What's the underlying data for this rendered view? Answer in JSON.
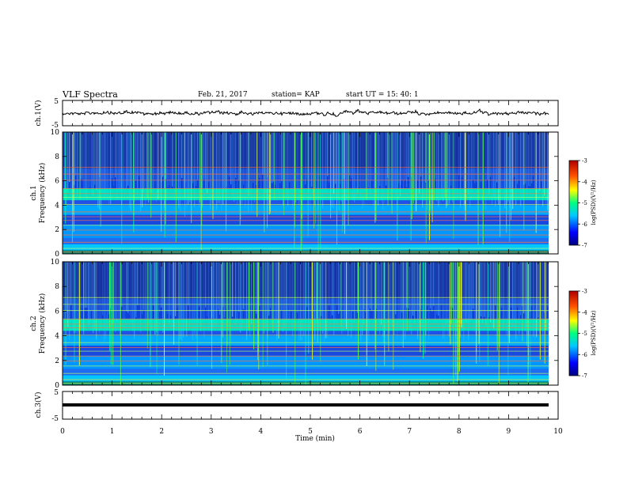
{
  "header": {
    "title": "VLF Spectra",
    "date": "Feb. 21, 2017",
    "station": "station= KAP",
    "start_ut": "start  UT =   15: 40: 1"
  },
  "chart_data": [
    {
      "type": "line",
      "ylabel": "ch.1(V)",
      "ylim": [
        -5,
        5
      ],
      "yticks": [
        "5",
        "-5"
      ],
      "xlim": [
        0,
        10
      ],
      "x_extent_min": 9.8,
      "description_level": "noisy waveform around 0 V, excursions up to about +2 V and down to about -2 V"
    },
    {
      "type": "heatmap",
      "ylabel_line1": "ch.1",
      "ylabel_line2": "Frequency (kHz)",
      "ylim": [
        0,
        10
      ],
      "yticks": [
        "0",
        "2",
        "4",
        "6",
        "8",
        "10"
      ],
      "xlim": [
        0,
        10
      ],
      "colorbar": {
        "label": "log(PSD)(V²/Hz)",
        "range": [
          -7,
          -3
        ],
        "ticks": [
          "-3",
          "-4",
          "-5",
          "-6",
          "-7"
        ]
      }
    },
    {
      "type": "heatmap",
      "ylabel_line1": "ch.2",
      "ylabel_line2": "Frequency (kHz)",
      "ylim": [
        0,
        10
      ],
      "yticks": [
        "0",
        "2",
        "4",
        "6",
        "8",
        "10"
      ],
      "xlim": [
        0,
        10
      ],
      "colorbar": {
        "label": "log(PSD)(V²/Hz)",
        "range": [
          -7,
          -3
        ],
        "ticks": [
          "-3",
          "-4",
          "-5",
          "-6",
          "-7"
        ]
      }
    },
    {
      "type": "line",
      "ylabel": "ch.3(V)",
      "ylim": [
        -5,
        5
      ],
      "yticks": [
        "5",
        "-5"
      ],
      "xlim": [
        0,
        10
      ],
      "constant_value": 0,
      "xlabel": "Time (min)",
      "xticks": [
        "0",
        "1",
        "2",
        "3",
        "4",
        "5",
        "6",
        "7",
        "8",
        "9",
        "10"
      ]
    }
  ],
  "colors": {
    "low": "#00007f",
    "mid": "#00e0d0",
    "high": "#ff0000"
  }
}
